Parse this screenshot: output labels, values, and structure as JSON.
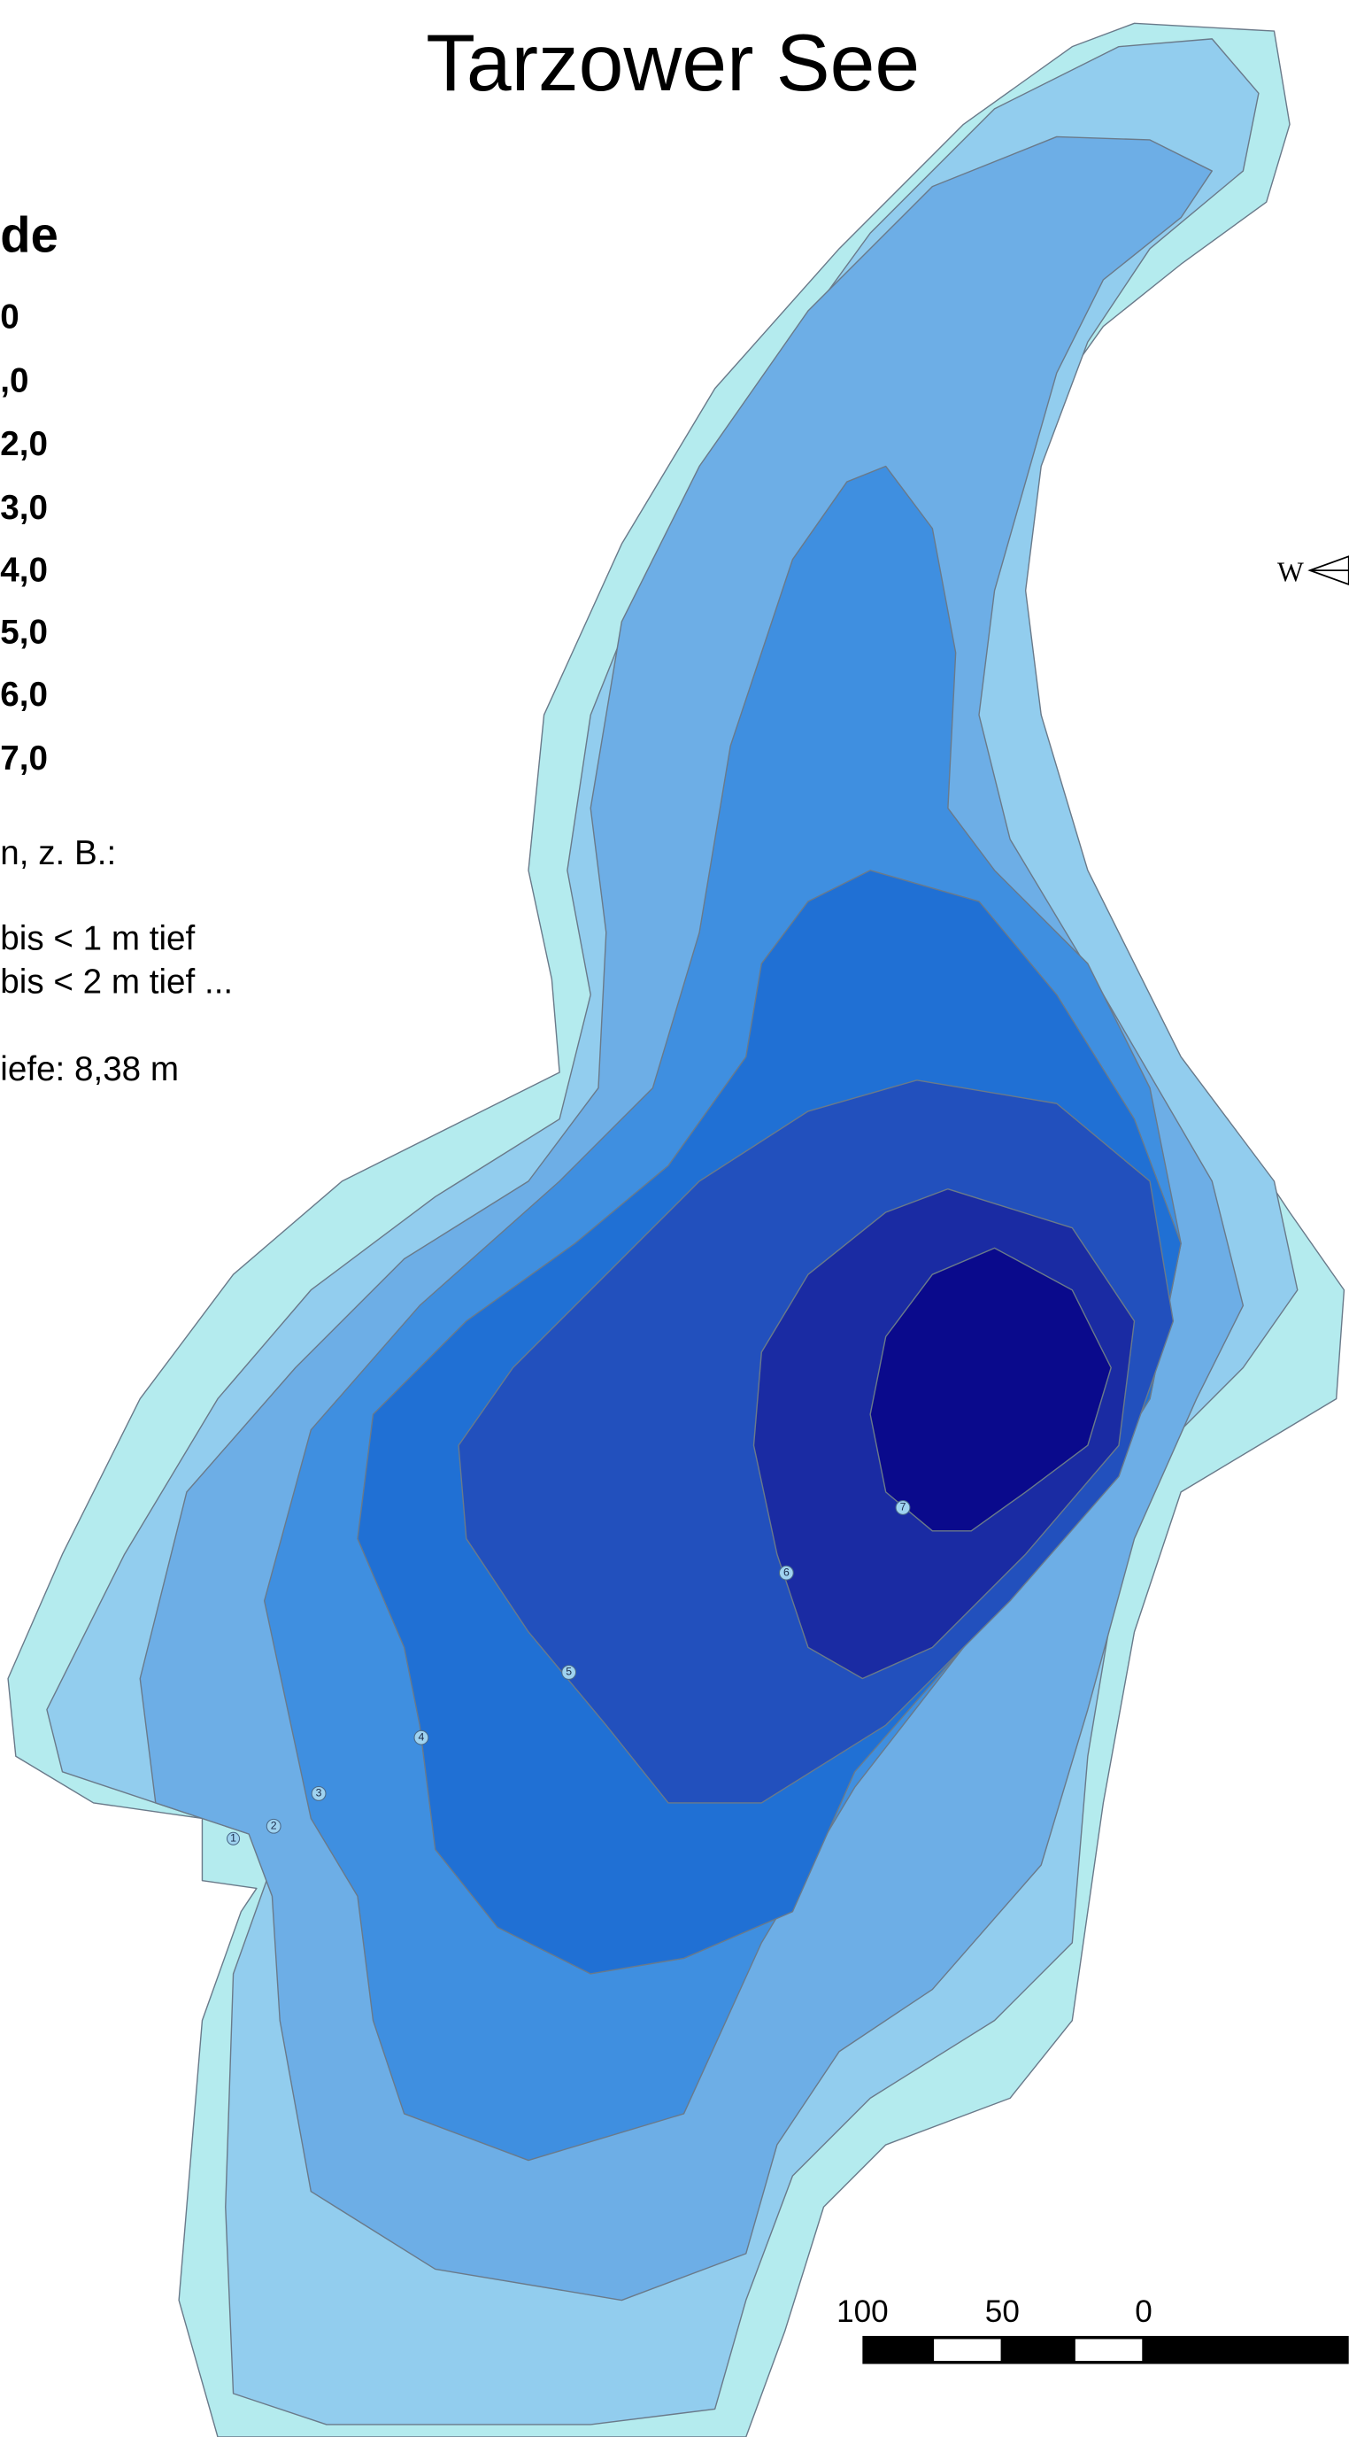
{
  "title": "Tarzower See",
  "legend": {
    "title": "de",
    "items": [
      "0",
      ",0",
      "2,0",
      "3,0",
      "4,0",
      "5,0",
      "6,0",
      "7,0"
    ]
  },
  "notes": [
    "n, z. B.:",
    "bis < 1 m tief",
    "bis < 2 m tief ...",
    "iefe: 8,38 m"
  ],
  "compass": "W",
  "scale_labels": [
    "100",
    "50",
    "0"
  ],
  "contour_labels": [
    "1",
    "2",
    "3",
    "4",
    "5",
    "6",
    "7"
  ]
}
